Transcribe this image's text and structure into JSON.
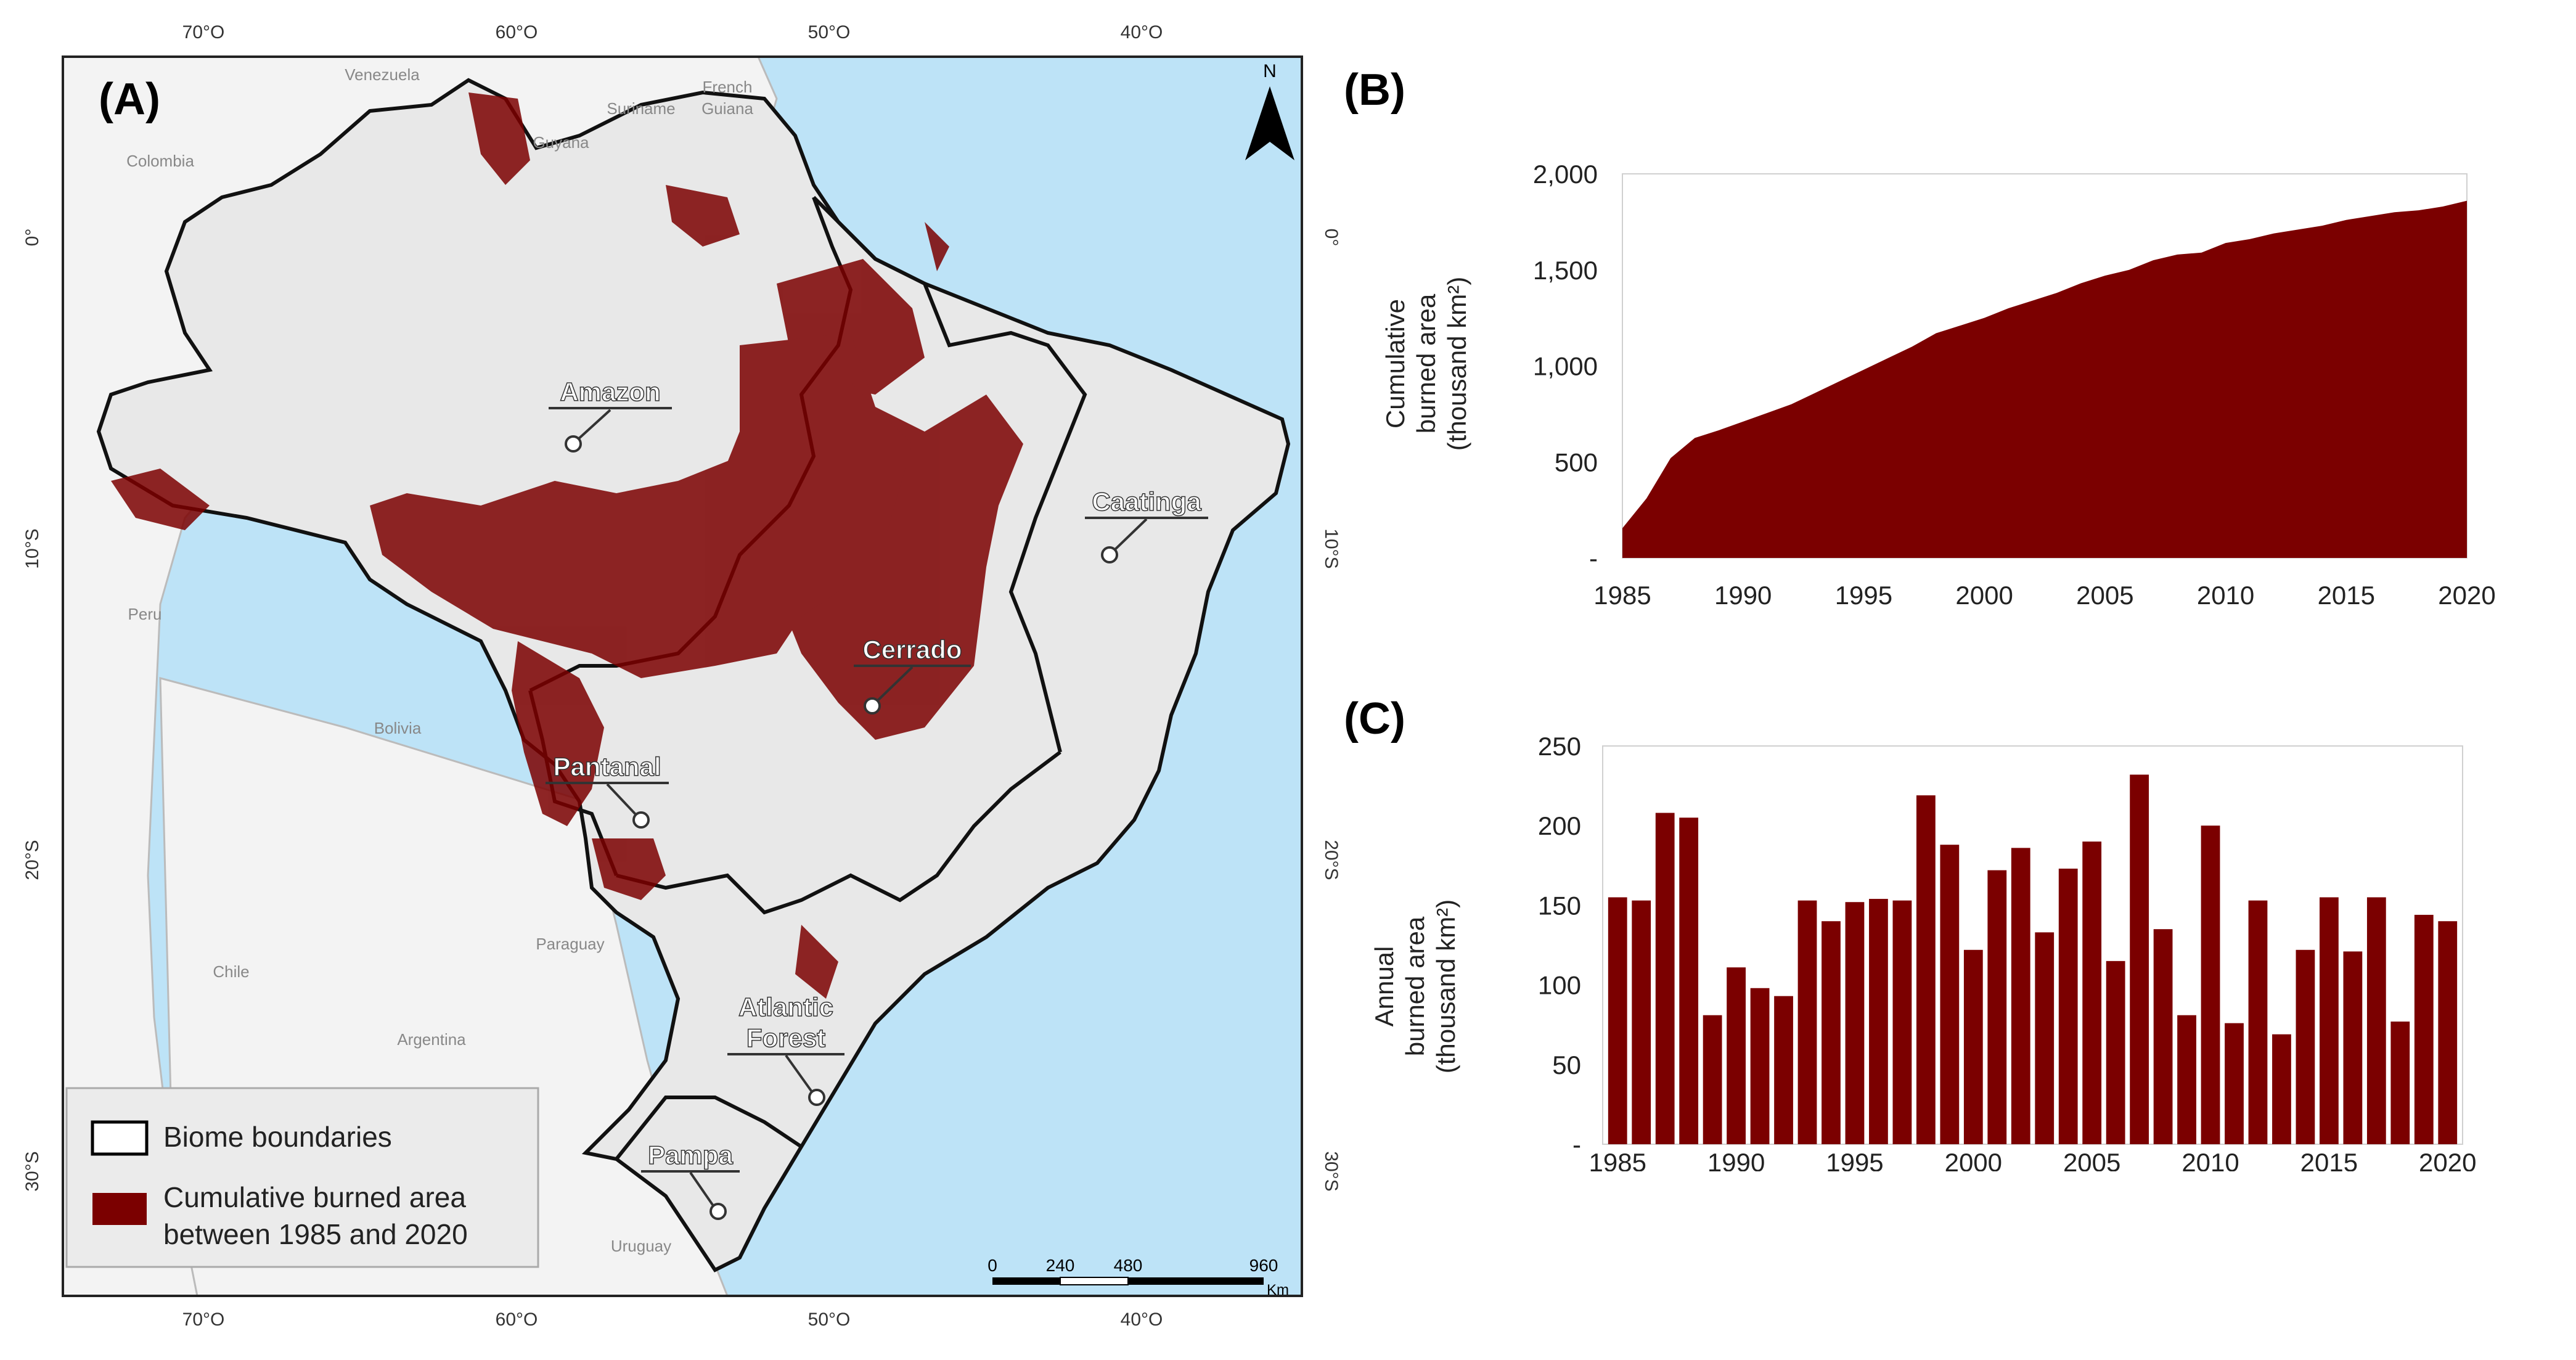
{
  "colors": {
    "burn": "#7b0000",
    "ocean": "#bde3f7",
    "land": "#ececec",
    "neighbor": "#f3f3f3"
  },
  "map": {
    "panel_label": "(A)",
    "north_label": "N",
    "top_lon_labels": [
      "70°O",
      "60°O",
      "50°O",
      "40°O"
    ],
    "bottom_lon_labels": [
      "70°O",
      "60°O",
      "50°O",
      "40°O"
    ],
    "lat_labels": [
      "0°",
      "10°S",
      "20°S",
      "30°S"
    ],
    "countries": [
      "Venezuela",
      "Guyana",
      "Suriname",
      "French",
      "Guiana",
      "Colombia",
      "Peru",
      "Bolivia",
      "Chile",
      "Paraguay",
      "Argentina",
      "Uruguay"
    ],
    "biomes": [
      "Amazon",
      "Caatinga",
      "Cerrado",
      "Pantanal",
      "Atlantic",
      "Forest",
      "Pampa"
    ],
    "legend": {
      "boundaries": "Biome boundaries",
      "burned_line1": "Cumulative burned area",
      "burned_line2": "between 1985 and 2020"
    },
    "scale": {
      "labels": [
        "0",
        "240",
        "480",
        "960"
      ],
      "unit": "Km"
    }
  },
  "chart_data": [
    {
      "id": "B",
      "type": "area",
      "panel_label": "(B)",
      "ylabel_line1": "Cumulative",
      "ylabel_line2": "burned area",
      "ylabel_line3": "(thousand km²)",
      "x_ticks": [
        "1985",
        "1990",
        "1995",
        "2000",
        "2005",
        "2010",
        "2015",
        "2020"
      ],
      "y_ticks": [
        "-",
        "500",
        "1,000",
        "1,500",
        "2,000"
      ],
      "ylim": [
        0,
        2000
      ],
      "xlim": [
        1985,
        2020
      ],
      "x": [
        1985,
        1986,
        1987,
        1988,
        1989,
        1990,
        1991,
        1992,
        1993,
        1994,
        1995,
        1996,
        1997,
        1998,
        1999,
        2000,
        2001,
        2002,
        2003,
        2004,
        2005,
        2006,
        2007,
        2008,
        2009,
        2010,
        2011,
        2012,
        2013,
        2014,
        2015,
        2016,
        2017,
        2018,
        2019,
        2020
      ],
      "values": [
        155,
        310,
        520,
        625,
        665,
        710,
        755,
        800,
        860,
        920,
        980,
        1040,
        1100,
        1170,
        1210,
        1250,
        1300,
        1340,
        1380,
        1430,
        1470,
        1500,
        1550,
        1580,
        1590,
        1640,
        1660,
        1690,
        1710,
        1730,
        1760,
        1780,
        1800,
        1810,
        1830,
        1860
      ]
    },
    {
      "id": "C",
      "type": "bar",
      "panel_label": "(C)",
      "ylabel_line1": "Annual",
      "ylabel_line2": "burned area",
      "ylabel_line3": "(thousand km²)",
      "x_ticks": [
        "1985",
        "1990",
        "1995",
        "2000",
        "2005",
        "2010",
        "2015",
        "2020"
      ],
      "y_ticks": [
        "-",
        "50",
        "100",
        "150",
        "200",
        "250"
      ],
      "ylim": [
        0,
        250
      ],
      "categories": [
        1985,
        1986,
        1987,
        1988,
        1989,
        1990,
        1991,
        1992,
        1993,
        1994,
        1995,
        1996,
        1997,
        1998,
        1999,
        2000,
        2001,
        2002,
        2003,
        2004,
        2005,
        2006,
        2007,
        2008,
        2009,
        2010,
        2011,
        2012,
        2013,
        2014,
        2015,
        2016,
        2017,
        2018,
        2019,
        2020
      ],
      "values": [
        155,
        153,
        208,
        205,
        81,
        111,
        98,
        93,
        153,
        140,
        152,
        154,
        153,
        219,
        188,
        122,
        172,
        186,
        133,
        173,
        190,
        115,
        232,
        135,
        81,
        200,
        76,
        153,
        69,
        122,
        155,
        121,
        155,
        77,
        144,
        140
      ]
    }
  ]
}
